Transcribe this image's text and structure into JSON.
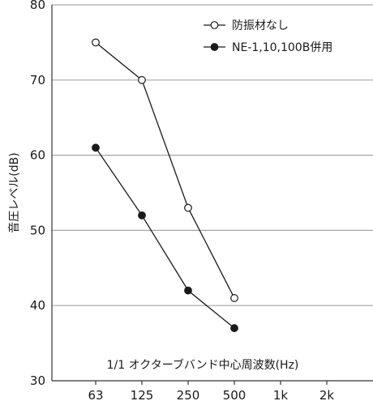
{
  "chart_data": {
    "type": "line",
    "categories": [
      "63",
      "125",
      "250",
      "500",
      "1k",
      "2k"
    ],
    "ylabel": "音圧レベル(dB)",
    "xlabel": "1/1 オクターブバンド中心周波数(Hz)",
    "ylim": [
      30,
      80
    ],
    "yticks": [
      30,
      40,
      50,
      60,
      70,
      80
    ],
    "grid": true,
    "legend_position": "top-right",
    "series": [
      {
        "name": "防振材なし",
        "marker": "open-circle",
        "values": [
          75,
          70,
          53,
          41,
          null,
          null
        ]
      },
      {
        "name": "NE-1,10,100B併用",
        "marker": "filled-circle",
        "values": [
          61,
          52,
          42,
          37,
          null,
          null
        ]
      }
    ],
    "colors": {
      "line": "#1a1a1a",
      "grid": "#a6a6a6",
      "marker_open_fill": "#ffffff"
    }
  }
}
